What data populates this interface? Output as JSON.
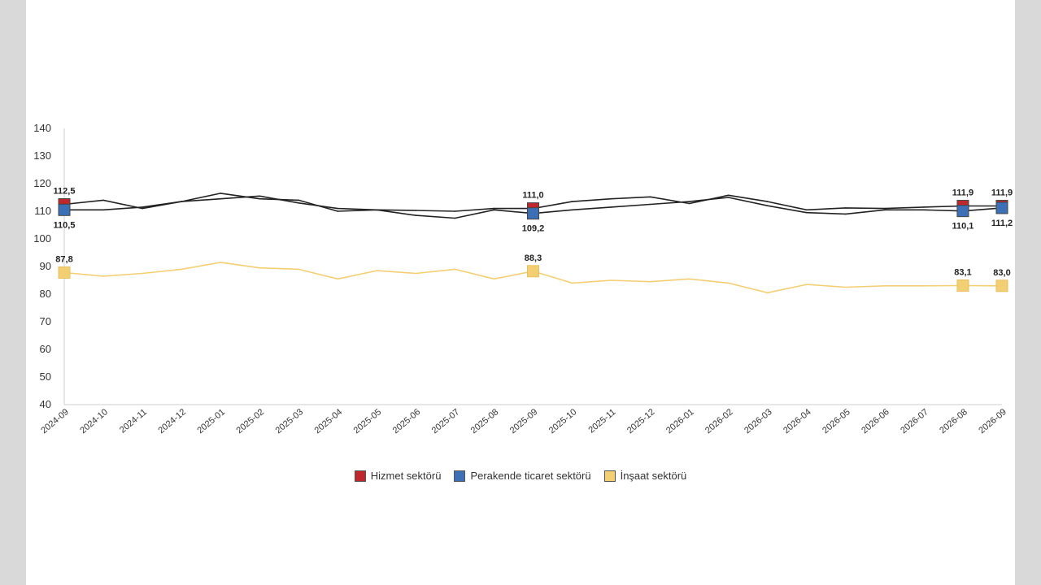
{
  "chart_data": {
    "type": "line",
    "x": [
      "2024-09",
      "2024-10",
      "2024-11",
      "2024-12",
      "2025-01",
      "2025-02",
      "2025-03",
      "2025-04",
      "2025-05",
      "2025-06",
      "2025-07",
      "2025-08",
      "2025-09",
      "2025-10",
      "2025-11",
      "2025-12",
      "2026-01",
      "2026-02",
      "2026-03",
      "2026-04",
      "2026-05",
      "2026-06",
      "2026-07",
      "2026-08",
      "2026-09"
    ],
    "ylim": [
      40,
      140
    ],
    "yticks": [
      40,
      50,
      60,
      70,
      80,
      90,
      100,
      110,
      120,
      130,
      140
    ],
    "grid": false,
    "legend_position": "bottom",
    "series": [
      {
        "name": "Hizmet sektörü",
        "color": "#c0272d",
        "values": [
          112.5,
          114.0,
          111.0,
          113.5,
          116.5,
          114.5,
          114.0,
          110.0,
          110.5,
          110.3,
          110.0,
          111.0,
          111.0,
          113.5,
          114.5,
          115.2,
          112.8,
          115.8,
          113.5,
          110.5,
          111.2,
          111.0,
          111.5,
          111.9,
          111.9
        ],
        "labels": {
          "0": "112,5",
          "12": "111,0",
          "23": "111,9",
          "24": "111,9"
        },
        "label_position": "above"
      },
      {
        "name": "Perakende ticaret sektörü",
        "color": "#3b6fb6",
        "values": [
          110.5,
          110.5,
          111.5,
          113.5,
          114.5,
          115.5,
          113.0,
          111.0,
          110.5,
          108.5,
          107.5,
          110.5,
          109.2,
          110.5,
          111.5,
          112.5,
          113.5,
          115.0,
          112.0,
          109.5,
          109.0,
          110.5,
          110.5,
          110.1,
          111.2
        ],
        "labels": {
          "0": "110,5",
          "12": "109,2",
          "23": "110,1",
          "24": "111,2"
        },
        "label_position": "below"
      },
      {
        "name": "İnşaat sektörü",
        "color": "#f3cf74",
        "values": [
          87.8,
          86.5,
          87.5,
          89.0,
          91.5,
          89.5,
          89.0,
          85.5,
          88.5,
          87.5,
          89.0,
          85.5,
          88.3,
          84.0,
          85.0,
          84.5,
          85.5,
          84.0,
          80.5,
          83.5,
          82.5,
          83.0,
          83.0,
          83.1,
          83.0
        ],
        "labels": {
          "0": "87,8",
          "12": "88,3",
          "23": "83,1",
          "24": "83,0"
        },
        "label_position": "above"
      }
    ]
  }
}
